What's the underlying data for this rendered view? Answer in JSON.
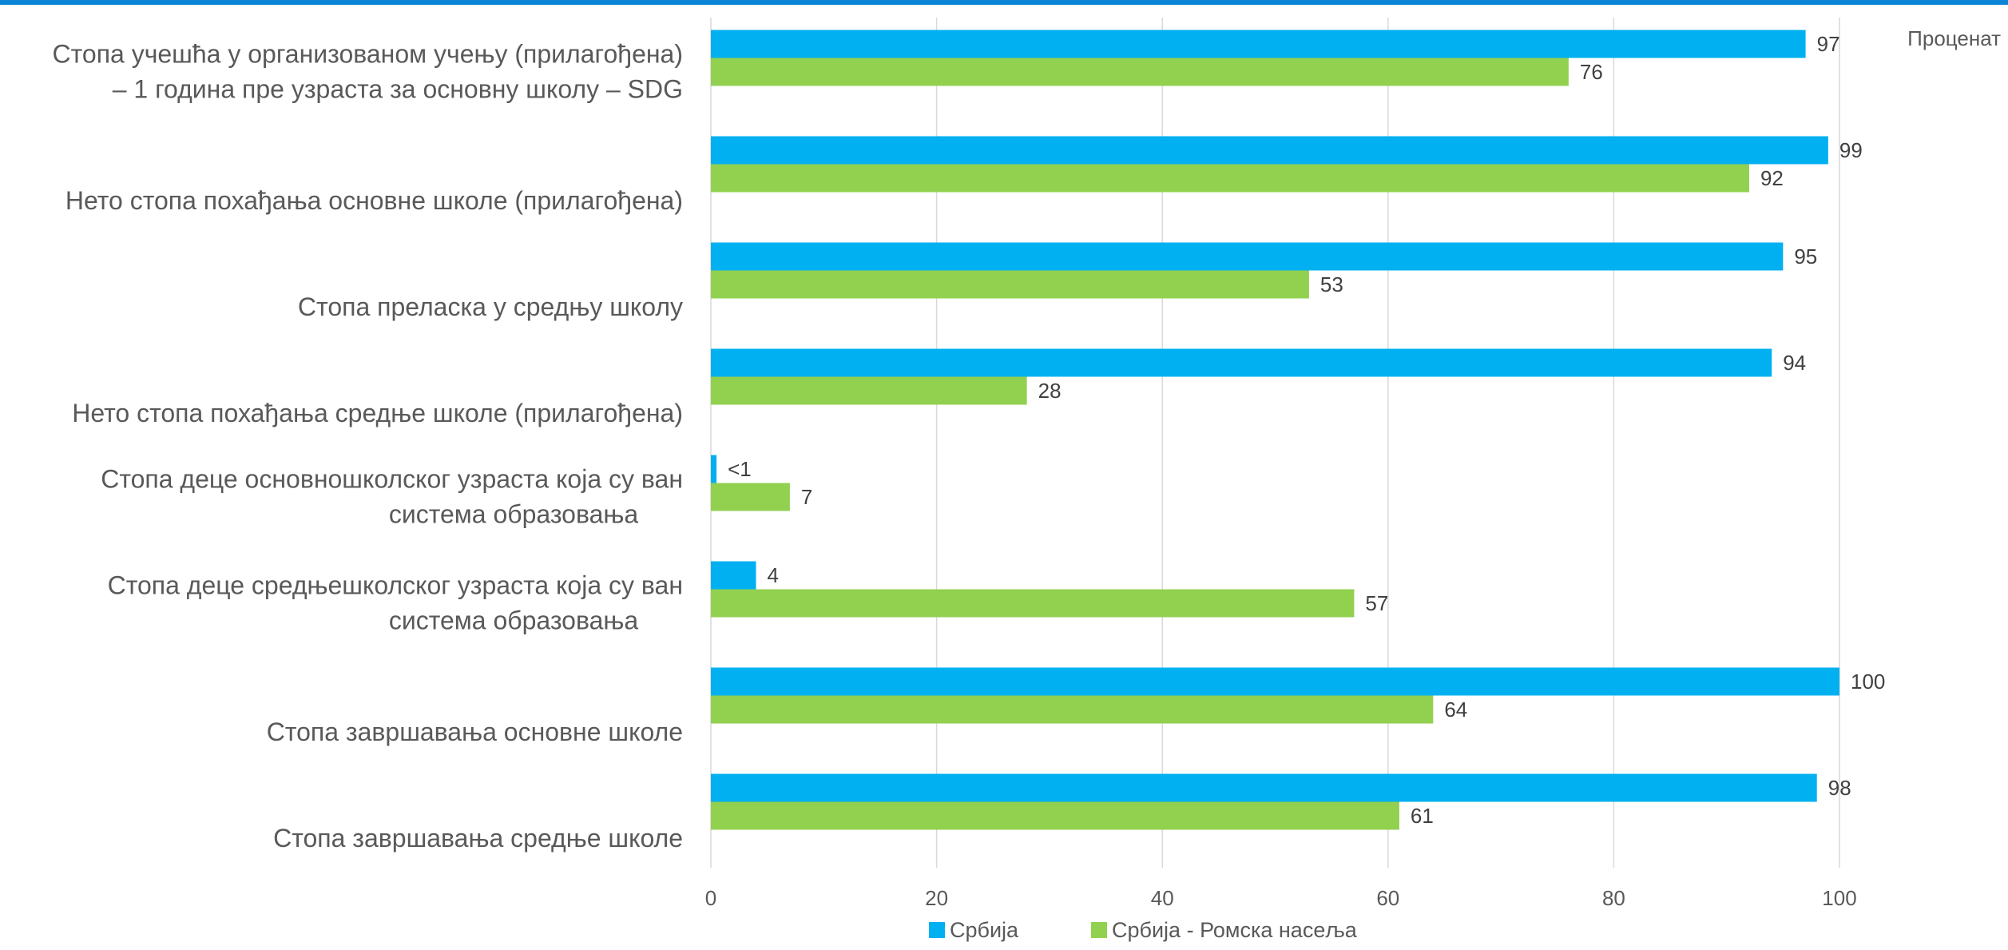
{
  "chart_data": {
    "type": "bar",
    "orientation": "horizontal",
    "unit_label": "Проценат",
    "categories": [
      [
        "Стопа учешћа у организованом учењу (прилагођена)",
        "– 1 година пре узраста за основну школу – SDG"
      ],
      [
        "Нето стопа похађања основне школе (прилагођена)"
      ],
      [
        "Стопа преласка у средњу школу"
      ],
      [
        "Нето стопа похађања средње школе (прилагођена)"
      ],
      [
        "Стопа деце основношколског узраста која су ван",
        "система образовања"
      ],
      [
        "Стопа деце средњешколског узраста која су ван",
        "система образовања"
      ],
      [
        "Стопа завршавања основне школе"
      ],
      [
        "Стопа завршавања средње школе"
      ]
    ],
    "series": [
      {
        "name": "Србија",
        "color": "#00b0f0",
        "values": [
          97,
          99,
          95,
          94,
          0.5,
          4,
          100,
          98
        ],
        "labels": [
          "97",
          "99",
          "95",
          "94",
          "<1",
          "4",
          "100",
          "98"
        ]
      },
      {
        "name": "Србија - Ромска насеља",
        "color": "#92d050",
        "values": [
          76,
          92,
          53,
          28,
          7,
          57,
          64,
          61
        ],
        "labels": [
          "76",
          "92",
          "53",
          "28",
          "7",
          "57",
          "64",
          "61"
        ]
      }
    ],
    "xlim": [
      0,
      100
    ],
    "xticks": [
      0,
      20,
      40,
      60,
      80,
      100
    ],
    "grid": true,
    "legend_position": "bottom"
  }
}
